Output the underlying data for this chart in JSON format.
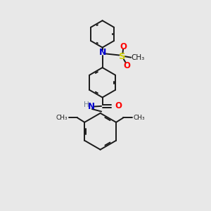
{
  "background_color": "#e8e8e8",
  "bond_color": "#1a1a1a",
  "N_color": "#0000cc",
  "O_color": "#ff0000",
  "S_color": "#cccc00",
  "H_color": "#708090",
  "figsize": [
    3.0,
    3.0
  ],
  "dpi": 100,
  "xlim": [
    0,
    10
  ],
  "ylim": [
    0,
    10
  ]
}
